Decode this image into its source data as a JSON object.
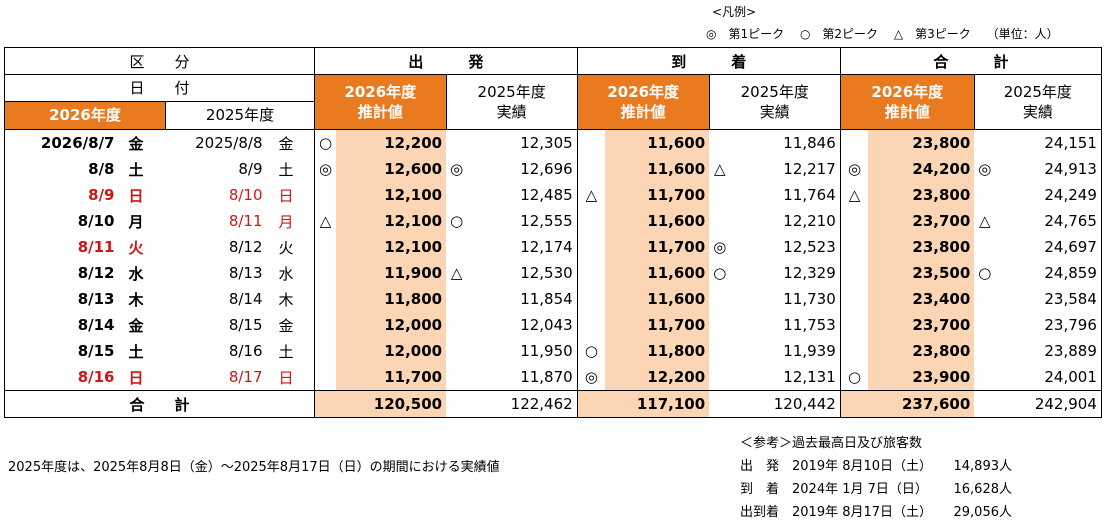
{
  "legend": {
    "title": "<凡例>",
    "items": [
      "◎　第1ピーク",
      "○　第2ピーク",
      "△　第3ピーク",
      "（単位：人）"
    ]
  },
  "header": {
    "kubun": "区　　分",
    "hizuke": "日　　付",
    "dep": "出　　　発",
    "arr": "到　　　着",
    "total": "合　　　計",
    "fy_current": "2026年度",
    "fy_prev": "2025年度",
    "est": "推計値",
    "actual": "実績"
  },
  "rows": [
    {
      "d26": "2026/8/7",
      "w26": "金",
      "d25": "2025/8/8",
      "w25": "金",
      "red26": false,
      "red25": false,
      "m1": "○",
      "dep26": "12,200",
      "m2": "",
      "dep25": "12,305",
      "m3": "",
      "arr26": "11,600",
      "m4": "",
      "arr25": "11,846",
      "m5": "",
      "tot26": "23,800",
      "m6": "",
      "tot25": "24,151"
    },
    {
      "d26": "8/8",
      "w26": "土",
      "d25": "8/9",
      "w25": "土",
      "red26": false,
      "red25": false,
      "m1": "◎",
      "dep26": "12,600",
      "m2": "◎",
      "dep25": "12,696",
      "m3": "",
      "arr26": "11,600",
      "m4": "△",
      "arr25": "12,217",
      "m5": "◎",
      "tot26": "24,200",
      "m6": "◎",
      "tot25": "24,913"
    },
    {
      "d26": "8/9",
      "w26": "日",
      "d25": "8/10",
      "w25": "日",
      "red26": true,
      "red25": true,
      "m1": "",
      "dep26": "12,100",
      "m2": "",
      "dep25": "12,485",
      "m3": "△",
      "arr26": "11,700",
      "m4": "",
      "arr25": "11,764",
      "m5": "△",
      "tot26": "23,800",
      "m6": "",
      "tot25": "24,249"
    },
    {
      "d26": "8/10",
      "w26": "月",
      "d25": "8/11",
      "w25": "月",
      "red26": false,
      "red25": true,
      "m1": "△",
      "dep26": "12,100",
      "m2": "○",
      "dep25": "12,555",
      "m3": "",
      "arr26": "11,600",
      "m4": "",
      "arr25": "12,210",
      "m5": "",
      "tot26": "23,700",
      "m6": "△",
      "tot25": "24,765"
    },
    {
      "d26": "8/11",
      "w26": "火",
      "d25": "8/12",
      "w25": "火",
      "red26": true,
      "red25": false,
      "m1": "",
      "dep26": "12,100",
      "m2": "",
      "dep25": "12,174",
      "m3": "",
      "arr26": "11,700",
      "m4": "◎",
      "arr25": "12,523",
      "m5": "",
      "tot26": "23,800",
      "m6": "",
      "tot25": "24,697"
    },
    {
      "d26": "8/12",
      "w26": "水",
      "d25": "8/13",
      "w25": "水",
      "red26": false,
      "red25": false,
      "m1": "",
      "dep26": "11,900",
      "m2": "△",
      "dep25": "12,530",
      "m3": "",
      "arr26": "11,600",
      "m4": "○",
      "arr25": "12,329",
      "m5": "",
      "tot26": "23,500",
      "m6": "○",
      "tot25": "24,859"
    },
    {
      "d26": "8/13",
      "w26": "木",
      "d25": "8/14",
      "w25": "木",
      "red26": false,
      "red25": false,
      "m1": "",
      "dep26": "11,800",
      "m2": "",
      "dep25": "11,854",
      "m3": "",
      "arr26": "11,600",
      "m4": "",
      "arr25": "11,730",
      "m5": "",
      "tot26": "23,400",
      "m6": "",
      "tot25": "23,584"
    },
    {
      "d26": "8/14",
      "w26": "金",
      "d25": "8/15",
      "w25": "金",
      "red26": false,
      "red25": false,
      "m1": "",
      "dep26": "12,000",
      "m2": "",
      "dep25": "12,043",
      "m3": "",
      "arr26": "11,700",
      "m4": "",
      "arr25": "11,753",
      "m5": "",
      "tot26": "23,700",
      "m6": "",
      "tot25": "23,796"
    },
    {
      "d26": "8/15",
      "w26": "土",
      "d25": "8/16",
      "w25": "土",
      "red26": false,
      "red25": false,
      "m1": "",
      "dep26": "12,000",
      "m2": "",
      "dep25": "11,950",
      "m3": "○",
      "arr26": "11,800",
      "m4": "",
      "arr25": "11,939",
      "m5": "",
      "tot26": "23,800",
      "m6": "",
      "tot25": "23,889"
    },
    {
      "d26": "8/16",
      "w26": "日",
      "d25": "8/17",
      "w25": "日",
      "red26": true,
      "red25": true,
      "m1": "",
      "dep26": "11,700",
      "m2": "",
      "dep25": "11,870",
      "m3": "◎",
      "arr26": "12,200",
      "m4": "",
      "arr25": "12,131",
      "m5": "○",
      "tot26": "23,900",
      "m6": "",
      "tot25": "24,001"
    }
  ],
  "totals": {
    "label": "合　　計",
    "dep26": "120,500",
    "dep25": "122,462",
    "arr26": "117,100",
    "arr25": "120,442",
    "tot26": "237,600",
    "tot25": "242,904"
  },
  "note": "2025年度は、2025年8月8日（金）～2025年8月17日（日）の期間における実績値",
  "reference": {
    "title": "＜参考＞過去最高日及び旅客数",
    "rows": [
      {
        "label": "出　発",
        "date": "2019年 8月10日（土）",
        "count": "14,893人"
      },
      {
        "label": "到　着",
        "date": "2024年 1月 7日（日）",
        "count": "16,628人"
      },
      {
        "label": "出到着",
        "date": "2019年 8月17日（土）",
        "count": "29,056人"
      }
    ]
  },
  "colors": {
    "accent": "#e97a1f",
    "peach": "#fcd5b4",
    "holiday_red": "#d01515"
  }
}
